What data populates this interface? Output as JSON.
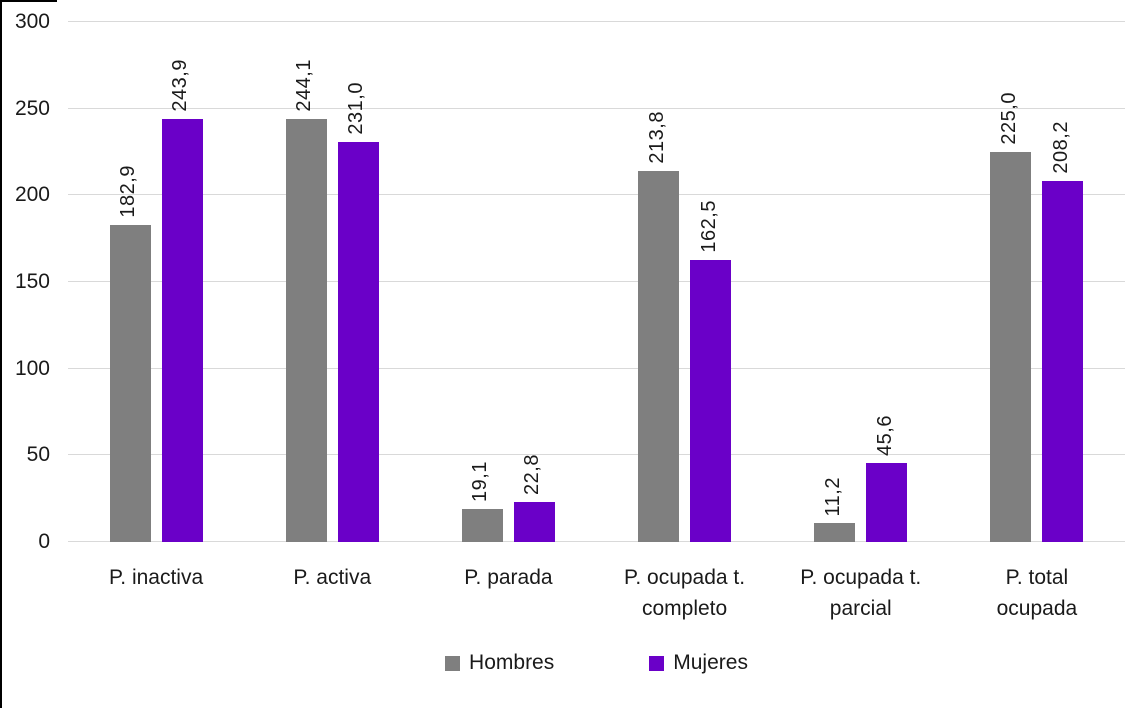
{
  "chart_data": {
    "type": "bar",
    "title": "",
    "xlabel": "",
    "ylabel": "",
    "categories": [
      "P. inactiva",
      "P. activa",
      "P. parada",
      "P. ocupada t. completo",
      "P. ocupada t. parcial",
      "P. total ocupada"
    ],
    "categories_wrapped": [
      [
        "P. inactiva"
      ],
      [
        "P. activa"
      ],
      [
        "P. parada"
      ],
      [
        "P. ocupada t.",
        "completo"
      ],
      [
        "P. ocupada t.",
        "parcial"
      ],
      [
        "P. total",
        "ocupada"
      ]
    ],
    "series": [
      {
        "name": "Hombres",
        "color": "#7F7F7F",
        "values": [
          182.9,
          244.1,
          19.1,
          213.8,
          11.2,
          225.0
        ]
      },
      {
        "name": "Mujeres",
        "color": "#6A00C8",
        "values": [
          243.9,
          231.0,
          22.8,
          162.5,
          45.6,
          208.2
        ]
      }
    ],
    "data_labels": {
      "Hombres": [
        "182,9",
        "244,1",
        "19,1",
        "213,8",
        "11,2",
        "225,0"
      ],
      "Mujeres": [
        "243,9",
        "231,0",
        "22,8",
        "162,5",
        "45,6",
        "208,2"
      ]
    },
    "decimal_separator": ",",
    "ylim": [
      0,
      300
    ],
    "yticks": [
      0,
      50,
      100,
      150,
      200,
      250,
      300
    ],
    "grid": true,
    "gridline_color": "#D9D9D9",
    "text_color": "#1a1a1a",
    "legend_position": "bottom",
    "legend": [
      "Hombres",
      "Mujeres"
    ]
  }
}
